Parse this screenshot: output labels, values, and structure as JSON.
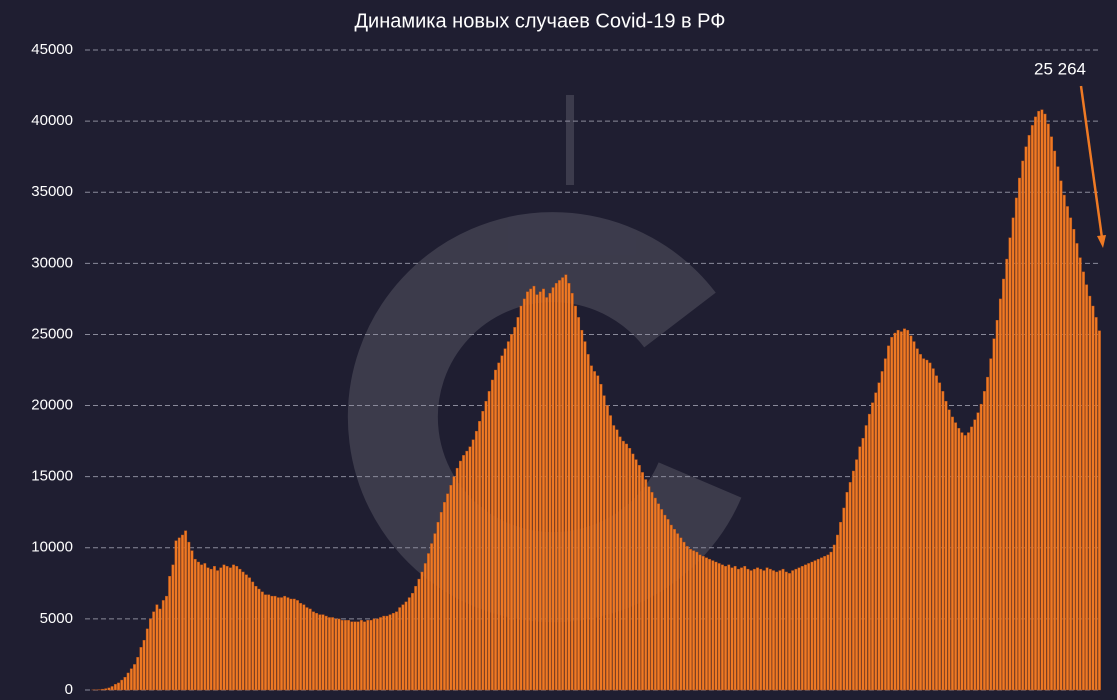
{
  "chart_data": {
    "type": "bar",
    "title": "Динамика новых случаев Covid-19 в РФ",
    "annotation": "25 264",
    "color": "#ef7a24",
    "ylim": [
      0,
      45000
    ],
    "yticks": [
      0,
      5000,
      10000,
      15000,
      20000,
      25000,
      30000,
      35000,
      40000,
      45000
    ],
    "grid": true,
    "values": [
      0,
      0,
      10,
      20,
      30,
      60,
      100,
      150,
      250,
      400,
      500,
      700,
      900,
      1200,
      1500,
      1800,
      2300,
      3000,
      3500,
      4300,
      5000,
      5500,
      6000,
      5700,
      6300,
      6600,
      8000,
      8800,
      10500,
      10700,
      10900,
      11200,
      10400,
      9800,
      9200,
      9000,
      8800,
      8900,
      8600,
      8500,
      8700,
      8400,
      8600,
      8800,
      8700,
      8600,
      8800,
      8700,
      8500,
      8300,
      8100,
      7900,
      7600,
      7300,
      7100,
      6900,
      6700,
      6700,
      6600,
      6600,
      6500,
      6500,
      6600,
      6500,
      6400,
      6400,
      6300,
      6100,
      6000,
      5800,
      5700,
      5500,
      5400,
      5300,
      5300,
      5200,
      5100,
      5100,
      5000,
      5000,
      4900,
      4900,
      4900,
      4800,
      4800,
      4800,
      4900,
      4800,
      4900,
      4900,
      5000,
      5000,
      5100,
      5200,
      5200,
      5300,
      5400,
      5500,
      5800,
      6000,
      6200,
      6500,
      6800,
      7300,
      7800,
      8300,
      8900,
      9600,
      10300,
      11000,
      11800,
      12500,
      13200,
      13800,
      14400,
      15000,
      15600,
      16100,
      16500,
      16800,
      17100,
      17600,
      18200,
      18900,
      19600,
      20300,
      21000,
      21800,
      22500,
      23000,
      23500,
      24000,
      24500,
      25000,
      25500,
      26200,
      27000,
      27500,
      28000,
      28200,
      28400,
      27800,
      28000,
      28200,
      27600,
      27900,
      28300,
      28600,
      28800,
      29000,
      29200,
      28600,
      27900,
      27000,
      26200,
      25300,
      24500,
      23600,
      22800,
      22400,
      22100,
      21500,
      20700,
      20000,
      19300,
      18600,
      18300,
      17800,
      17500,
      17300,
      17000,
      16600,
      16200,
      15800,
      15300,
      14800,
      14300,
      13900,
      13500,
      13100,
      12700,
      12300,
      12000,
      11600,
      11300,
      11000,
      10700,
      10400,
      10100,
      9900,
      9800,
      9700,
      9500,
      9400,
      9300,
      9200,
      9100,
      9000,
      8900,
      8800,
      8700,
      8800,
      8600,
      8700,
      8500,
      8600,
      8700,
      8500,
      8400,
      8500,
      8600,
      8500,
      8400,
      8600,
      8500,
      8400,
      8300,
      8400,
      8500,
      8300,
      8200,
      8400,
      8500,
      8600,
      8700,
      8800,
      8900,
      9000,
      9100,
      9200,
      9300,
      9400,
      9500,
      9700,
      10200,
      10900,
      11800,
      12800,
      13900,
      14600,
      15400,
      16200,
      17100,
      17700,
      18600,
      19400,
      20200,
      20900,
      21600,
      22400,
      23300,
      24200,
      24800,
      25100,
      25300,
      25200,
      25400,
      25300,
      24900,
      24500,
      24000,
      23600,
      23300,
      23200,
      23000,
      22600,
      22100,
      21600,
      21000,
      20300,
      19700,
      19200,
      18800,
      18400,
      18100,
      17900,
      18100,
      18500,
      19000,
      19500,
      20100,
      21000,
      22000,
      23300,
      24700,
      26000,
      27500,
      28900,
      30300,
      31800,
      33200,
      34600,
      36000,
      37200,
      38200,
      39000,
      39700,
      40300,
      40700,
      40800,
      40500,
      39800,
      38900,
      37900,
      36800,
      35800,
      34800,
      34000,
      33200,
      32400,
      31400,
      30400,
      29400,
      28500,
      27700,
      27000,
      26200,
      25264
    ]
  }
}
